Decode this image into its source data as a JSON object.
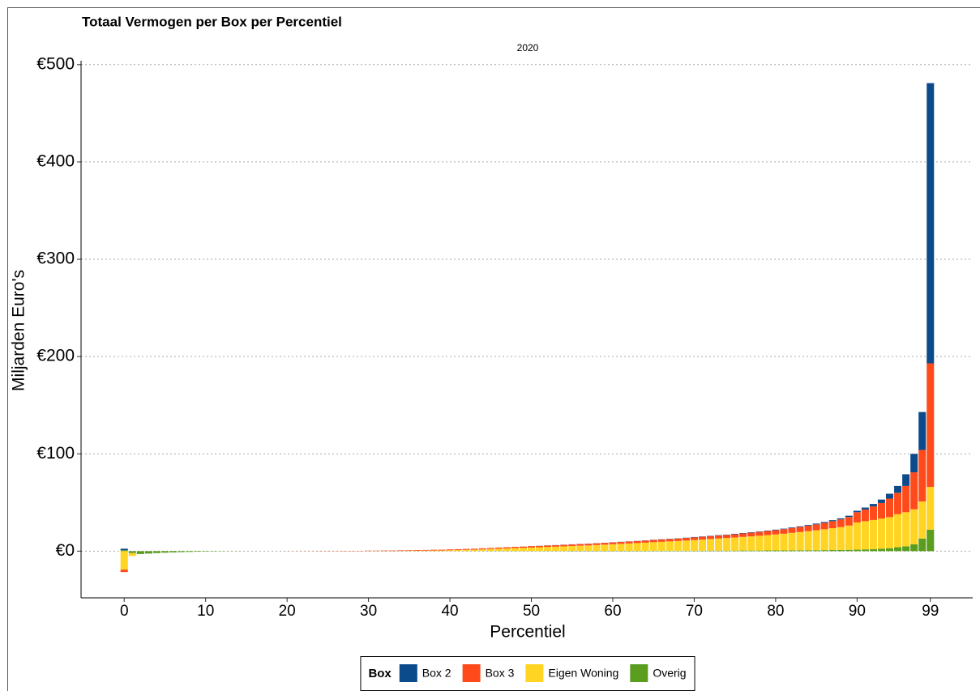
{
  "chart_data": {
    "type": "bar",
    "stacked": true,
    "title": "Totaal Vermogen per Box per Percentiel",
    "subtitle": "2020",
    "x_label": "Percentiel",
    "y_label": "Miljarden Euro's",
    "legend_title": "Box",
    "legend_position": "bottom",
    "grid": true,
    "x": [
      0,
      1,
      2,
      3,
      4,
      5,
      6,
      7,
      8,
      9,
      10,
      11,
      12,
      13,
      14,
      15,
      16,
      17,
      18,
      19,
      20,
      21,
      22,
      23,
      24,
      25,
      26,
      27,
      28,
      29,
      30,
      31,
      32,
      33,
      34,
      35,
      36,
      37,
      38,
      39,
      40,
      41,
      42,
      43,
      44,
      45,
      46,
      47,
      48,
      49,
      50,
      51,
      52,
      53,
      54,
      55,
      56,
      57,
      58,
      59,
      60,
      61,
      62,
      63,
      64,
      65,
      66,
      67,
      68,
      69,
      70,
      71,
      72,
      73,
      74,
      75,
      76,
      77,
      78,
      79,
      80,
      81,
      82,
      83,
      84,
      85,
      86,
      87,
      88,
      89,
      90,
      91,
      92,
      93,
      94,
      95,
      96,
      97,
      98,
      99
    ],
    "xlim": [
      -5.3,
      104.2
    ],
    "xticks": [
      0,
      10,
      20,
      30,
      40,
      50,
      60,
      70,
      80,
      90,
      99
    ],
    "ylim": [
      -48,
      504
    ],
    "yticks": [
      {
        "value": 0,
        "label": "€0"
      },
      {
        "value": 100,
        "label": "€100"
      },
      {
        "value": 200,
        "label": "€200"
      },
      {
        "value": 300,
        "label": "€300"
      },
      {
        "value": 400,
        "label": "€400"
      },
      {
        "value": 500,
        "label": "€500"
      }
    ],
    "series": [
      {
        "name": "Box 2",
        "color": "#0b4a8b",
        "values": [
          1.5,
          0,
          0,
          0,
          0,
          0,
          0,
          0,
          0,
          0,
          0,
          0,
          0,
          0,
          0,
          0,
          0,
          0,
          0,
          0,
          0,
          0,
          0,
          0,
          0,
          0,
          0,
          0,
          0,
          0,
          0,
          0,
          0,
          0,
          0,
          0,
          0,
          0,
          0,
          0,
          0,
          0,
          0,
          0,
          0,
          0,
          0,
          0,
          0,
          0,
          0.1,
          0.1,
          0.1,
          0.1,
          0.1,
          0.1,
          0.1,
          0.1,
          0.1,
          0.1,
          0.1,
          0.1,
          0.1,
          0.1,
          0.2,
          0.2,
          0.2,
          0.2,
          0.2,
          0.2,
          0.3,
          0.3,
          0.3,
          0.3,
          0.3,
          0.4,
          0.4,
          0.4,
          0.4,
          0.4,
          0.5,
          0.5,
          0.6,
          0.6,
          0.7,
          0.8,
          0.9,
          1,
          1.1,
          1.3,
          1.5,
          2,
          2.5,
          3.5,
          5,
          7,
          12,
          19,
          39,
          288
        ]
      },
      {
        "name": "Box 3",
        "color": "#ff4b1c",
        "values": [
          -2.5,
          0,
          0,
          0,
          0,
          0,
          0,
          0,
          0,
          0,
          0,
          0,
          0,
          0,
          0,
          0,
          0,
          0,
          0,
          0,
          0.1,
          0.1,
          0.1,
          0.1,
          0.2,
          0.2,
          0.2,
          0.3,
          0.3,
          0.3,
          0.4,
          0.4,
          0.5,
          0.5,
          0.6,
          0.6,
          0.7,
          0.7,
          0.8,
          0.8,
          0.9,
          0.9,
          1,
          1,
          1.1,
          1.1,
          1.2,
          1.2,
          1.3,
          1.3,
          1.4,
          1.4,
          1.5,
          1.5,
          1.6,
          1.6,
          1.7,
          1.7,
          1.8,
          1.8,
          1.9,
          2,
          2,
          2.1,
          2.2,
          2.3,
          2.4,
          2.5,
          2.6,
          2.7,
          2.8,
          2.9,
          3,
          3.1,
          3.2,
          3.4,
          3.6,
          3.8,
          4,
          4.2,
          4.4,
          4.7,
          5,
          5.3,
          5.7,
          6.1,
          6.6,
          7.2,
          7.9,
          8.8,
          10.5,
          12,
          14,
          16,
          19,
          22,
          27,
          38,
          53,
          127
        ]
      },
      {
        "name": "Eigen Woning",
        "color": "#ffd422",
        "values": [
          -19,
          -3,
          0,
          0,
          0,
          0,
          0,
          0,
          0,
          0,
          0,
          0,
          0,
          0,
          0,
          0,
          0,
          0,
          0,
          0,
          0,
          0,
          0,
          0,
          0,
          0,
          0,
          0,
          0,
          0,
          0,
          0,
          0,
          0,
          0.1,
          0.2,
          0.3,
          0.4,
          0.5,
          0.6,
          0.8,
          1,
          1.2,
          1.4,
          1.7,
          2,
          2.3,
          2.6,
          2.9,
          3.2,
          3.5,
          3.8,
          4.1,
          4.4,
          4.7,
          5,
          5.3,
          5.6,
          6,
          6.4,
          6.8,
          7.2,
          7.6,
          8,
          8.4,
          8.8,
          9.2,
          9.6,
          10,
          10.5,
          11,
          11.5,
          12,
          12.5,
          13,
          13.5,
          14,
          14.6,
          15.2,
          15.8,
          16.5,
          17.2,
          18,
          18.8,
          19.6,
          20.5,
          21.5,
          22.5,
          23.5,
          25,
          28,
          29,
          30,
          31,
          32,
          34,
          35,
          36,
          38,
          44
        ]
      },
      {
        "name": "Overig",
        "color": "#5a9d1f",
        "values": [
          1,
          -2,
          -3,
          -2.5,
          -2,
          -1.6,
          -1.3,
          -1,
          -0.8,
          -0.6,
          -0.4,
          -0.3,
          -0.2,
          -0.1,
          -0.1,
          0,
          0,
          0,
          0,
          0,
          0,
          0,
          0,
          0,
          0,
          0,
          0,
          0,
          0,
          0,
          0.1,
          0.1,
          0.1,
          0.1,
          0.1,
          0.1,
          0.1,
          0.1,
          0.1,
          0.1,
          0.1,
          0.1,
          0.1,
          0.1,
          0.1,
          0.2,
          0.2,
          0.2,
          0.2,
          0.2,
          0.2,
          0.2,
          0.2,
          0.2,
          0.2,
          0.3,
          0.3,
          0.3,
          0.3,
          0.3,
          0.3,
          0.3,
          0.3,
          0.3,
          0.3,
          0.4,
          0.4,
          0.4,
          0.4,
          0.4,
          0.4,
          0.4,
          0.5,
          0.5,
          0.5,
          0.5,
          0.6,
          0.6,
          0.6,
          0.7,
          0.7,
          0.7,
          0.8,
          0.8,
          0.9,
          0.9,
          1,
          1.1,
          1.2,
          1.3,
          1.5,
          1.8,
          2,
          2.5,
          3,
          4,
          5,
          7,
          13,
          22
        ]
      }
    ]
  }
}
